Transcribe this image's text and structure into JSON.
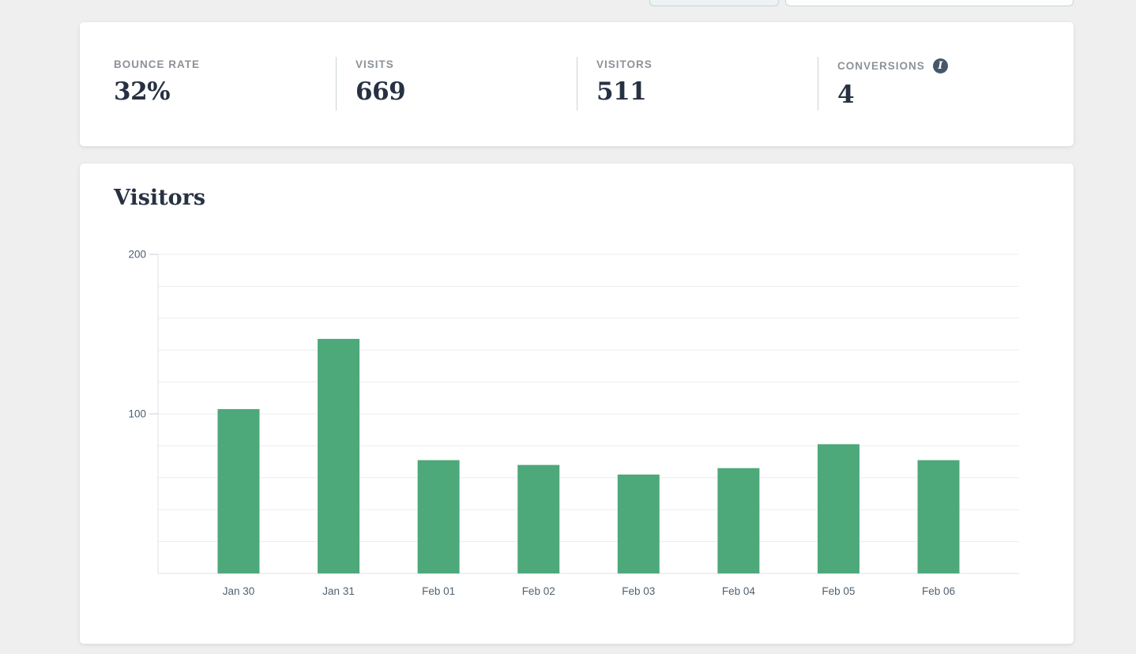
{
  "page": {
    "background_color": "#efeff0",
    "card_color": "#ffffff"
  },
  "stats": {
    "items": [
      {
        "label": "BOUNCE RATE",
        "value": "32%"
      },
      {
        "label": "VISITS",
        "value": "669"
      },
      {
        "label": "VISITORS",
        "value": "511"
      },
      {
        "label": "CONVERSIONS",
        "value": "4",
        "info_icon_glyph": "i"
      }
    ]
  },
  "chart_card": {
    "title": "Visitors"
  },
  "chart_data": {
    "type": "bar",
    "title": "Visitors",
    "categories": [
      "Jan 30",
      "Jan 31",
      "Feb 01",
      "Feb 02",
      "Feb 03",
      "Feb 04",
      "Feb 05",
      "Feb 06"
    ],
    "values": [
      103,
      147,
      71,
      68,
      62,
      66,
      81,
      71
    ],
    "xlabel": "",
    "ylabel": "",
    "ylim": [
      0,
      200
    ],
    "ytick_labels": [
      100,
      200
    ],
    "gridline_step": 20,
    "grid": true,
    "legend": "none",
    "bar_color": "#4da87a",
    "gridline_color": "#eaedf1",
    "axis_line_color": "#dfe3e7"
  }
}
